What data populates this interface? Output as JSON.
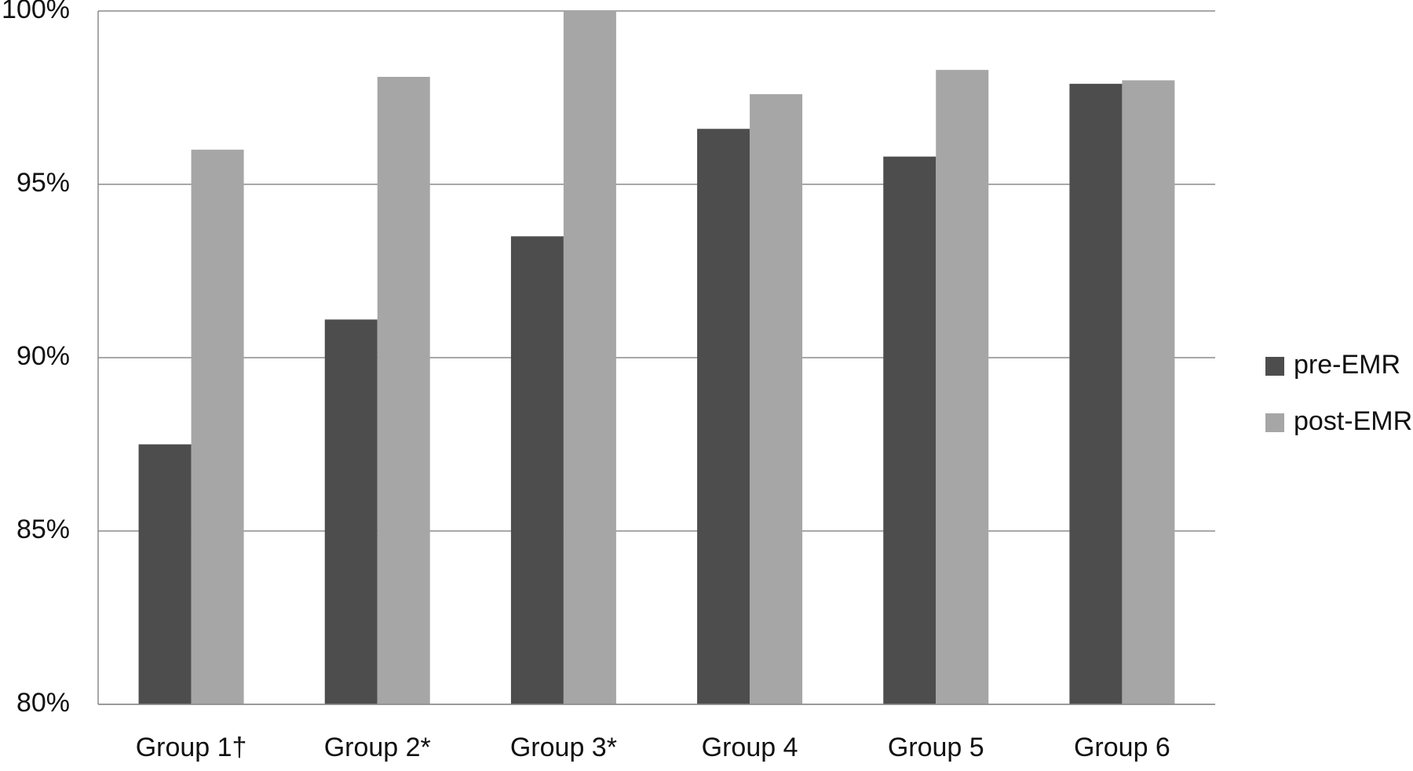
{
  "chart_data": {
    "type": "bar",
    "title": "",
    "xlabel": "",
    "ylabel": "",
    "categories": [
      "Group 1†",
      "Group 2*",
      "Group 3*",
      "Group 4",
      "Group 5",
      "Group 6"
    ],
    "series": [
      {
        "name": "pre-EMR",
        "color": "#4d4d4d",
        "values": [
          87.5,
          91.1,
          93.5,
          96.6,
          95.8,
          97.9
        ]
      },
      {
        "name": "post-EMR",
        "color": "#a6a6a6",
        "values": [
          96.0,
          98.1,
          100.0,
          97.6,
          98.3,
          98.0
        ]
      }
    ],
    "ylim": [
      80,
      100
    ],
    "yticks": [
      80,
      85,
      90,
      95,
      100
    ],
    "ytick_labels": [
      "80%",
      "85%",
      "90%",
      "95%",
      "100%"
    ],
    "grid": true,
    "legend_position": "right"
  }
}
